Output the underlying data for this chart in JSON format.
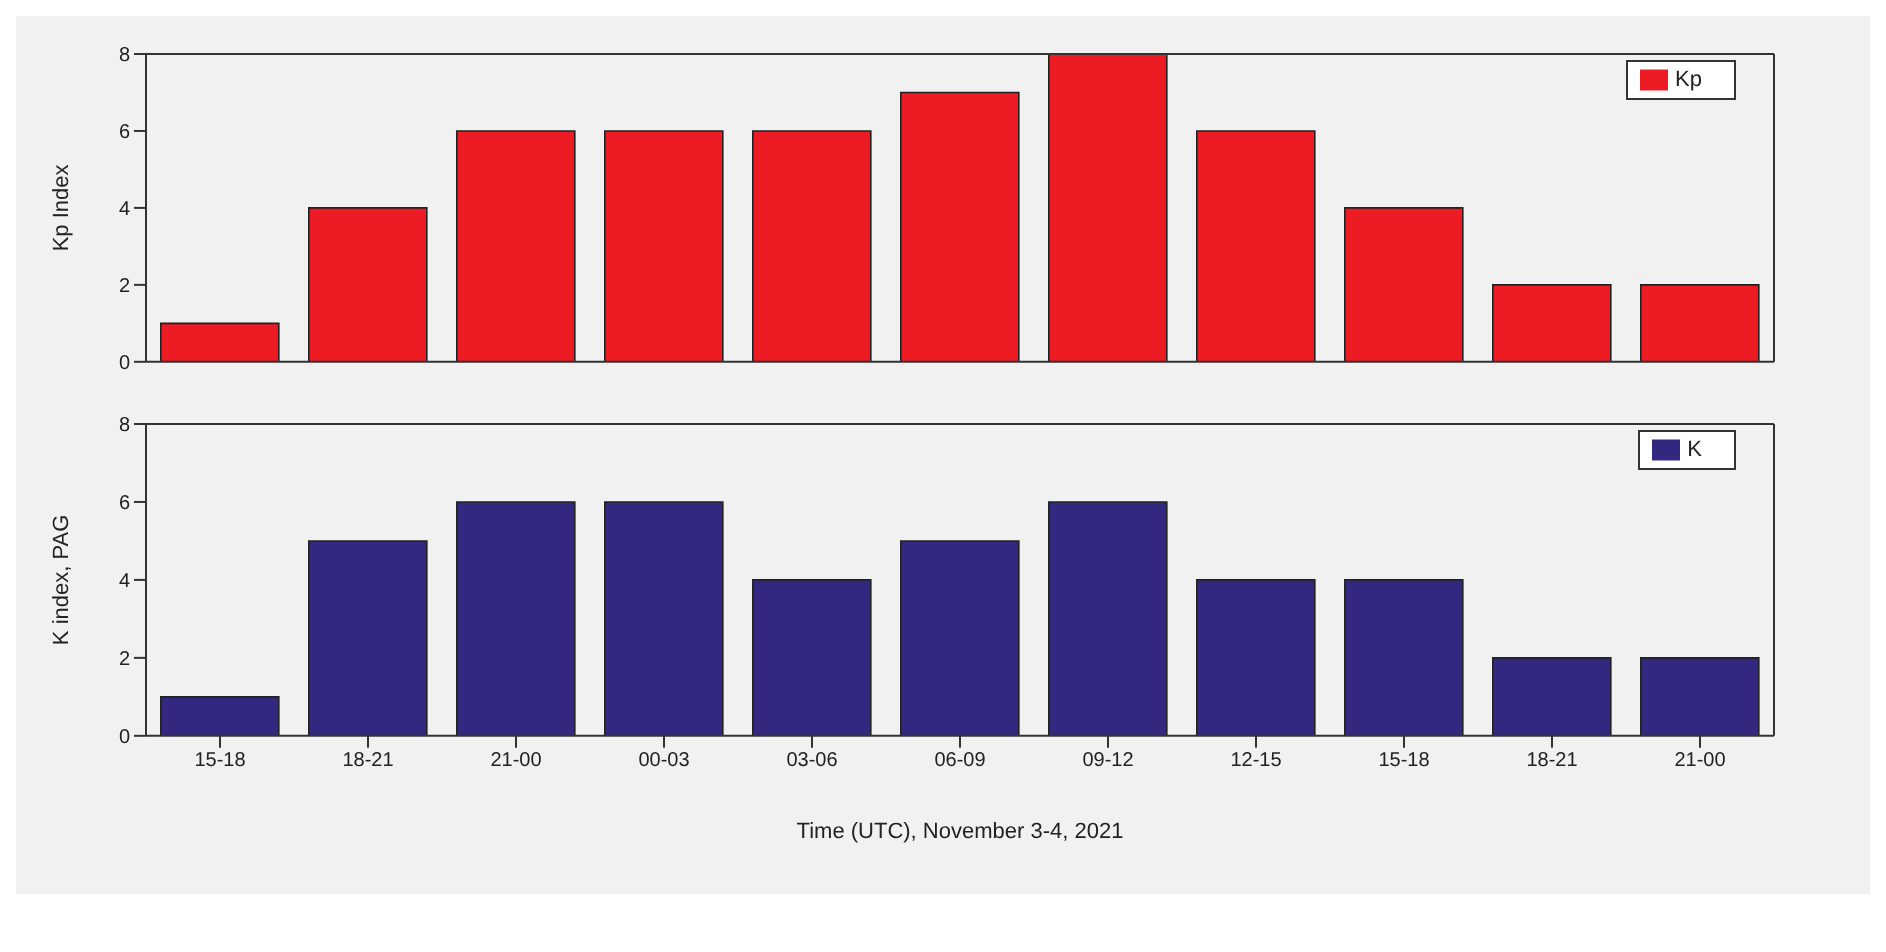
{
  "chart_data": [
    {
      "type": "bar",
      "categories": [
        null,
        null,
        null,
        null,
        null,
        null,
        null,
        null,
        null,
        null,
        null
      ],
      "ylabel": "Kp Index",
      "ylim": [
        0,
        8
      ],
      "yticks": [
        0,
        2,
        4,
        6,
        8
      ],
      "legend": "top right",
      "series": [
        {
          "name": "Kp",
          "color": "#ed1c24",
          "values": [
            1,
            4,
            6,
            6,
            6,
            7,
            8,
            6,
            4,
            2,
            2
          ]
        }
      ]
    },
    {
      "type": "bar",
      "categories": [
        "15-18",
        "18-21",
        "21-00",
        "00-03",
        "03-06",
        "06-09",
        "09-12",
        "12-15",
        "15-18",
        "18-21",
        "21-00"
      ],
      "ylabel": "K index, PAG",
      "xlabel": "Time (UTC), November 3-4, 2021",
      "ylim": [
        0,
        8
      ],
      "yticks": [
        0,
        2,
        4,
        6,
        8
      ],
      "legend": "top right",
      "series": [
        {
          "name": "K",
          "color": "#32287f",
          "values": [
            1,
            5,
            6,
            6,
            4,
            5,
            6,
            4,
            4,
            2,
            2
          ]
        }
      ]
    }
  ]
}
